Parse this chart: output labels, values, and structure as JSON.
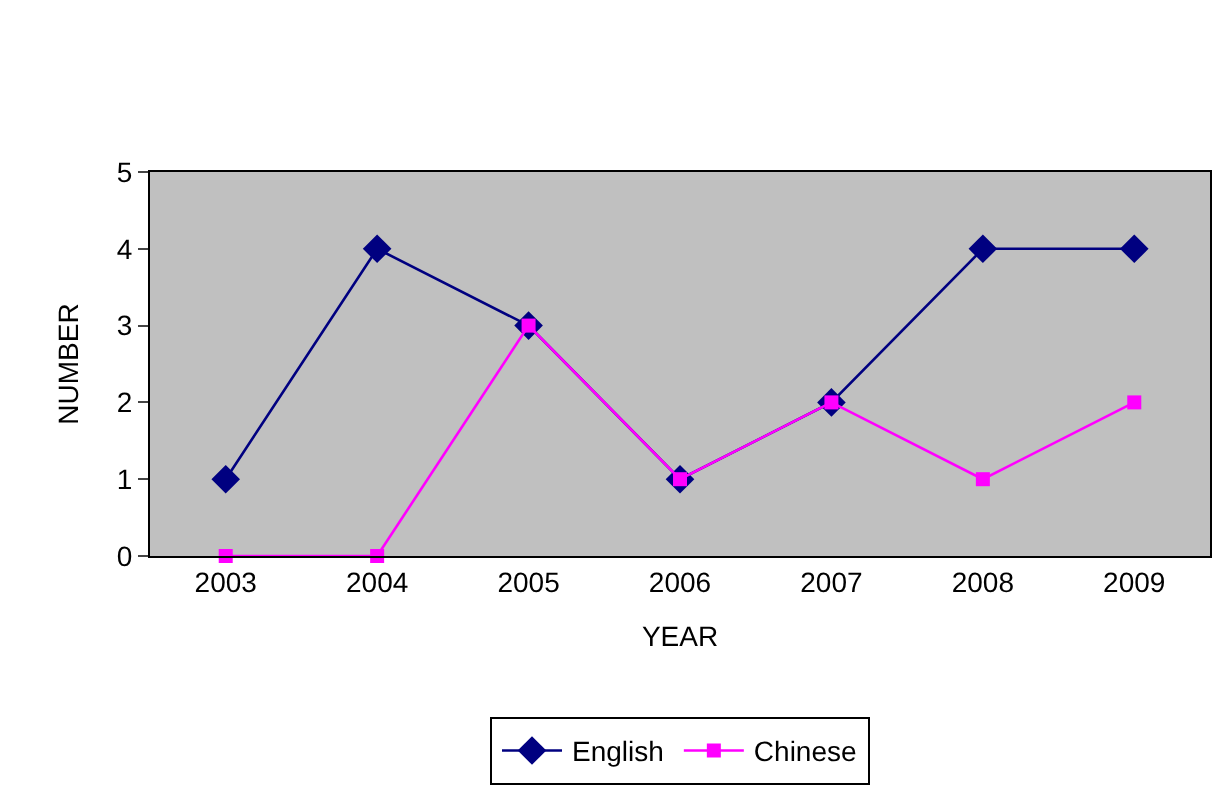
{
  "chart_data": {
    "type": "line",
    "xlabel": "YEAR",
    "ylabel": "NUMBER",
    "categories": [
      "2003",
      "2004",
      "2005",
      "2006",
      "2007",
      "2008",
      "2009"
    ],
    "series": [
      {
        "name": "English",
        "color": "#000080",
        "marker": "diamond",
        "values": [
          1,
          4,
          3,
          1,
          2,
          4,
          4
        ]
      },
      {
        "name": "Chinese",
        "color": "#ff00ff",
        "marker": "square",
        "values": [
          0,
          0,
          3,
          1,
          2,
          1,
          2
        ]
      }
    ],
    "ylim": [
      0,
      5
    ],
    "yticks": [
      0,
      1,
      2,
      3,
      4,
      5
    ],
    "grid": false,
    "legend": "bottom",
    "line_style": "solid"
  }
}
